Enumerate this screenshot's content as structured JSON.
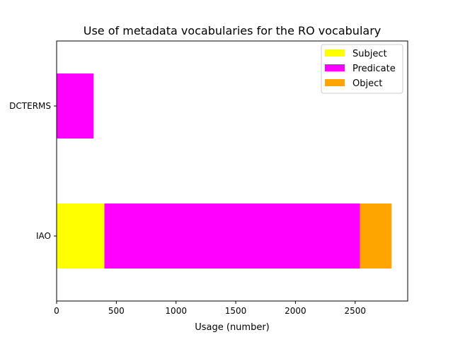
{
  "chart_data": {
    "type": "bar",
    "orientation": "horizontal",
    "stacked": true,
    "title": "Use of metadata vocabularies for the RO vocabulary",
    "xlabel": "Usage (number)",
    "ylabel": "",
    "categories": [
      "IAO",
      "DCTERMS"
    ],
    "series": [
      {
        "name": "Subject",
        "color": "#ffff00",
        "values": [
          400,
          0
        ]
      },
      {
        "name": "Predicate",
        "color": "#ff00ff",
        "values": [
          2140,
          310
        ]
      },
      {
        "name": "Object",
        "color": "#ffa500",
        "values": [
          265,
          0
        ]
      }
    ],
    "xlim": [
      0,
      2940
    ],
    "xticks": [
      0,
      500,
      1000,
      1500,
      2000,
      2500
    ],
    "grid": false,
    "legend_position": "top-right"
  }
}
